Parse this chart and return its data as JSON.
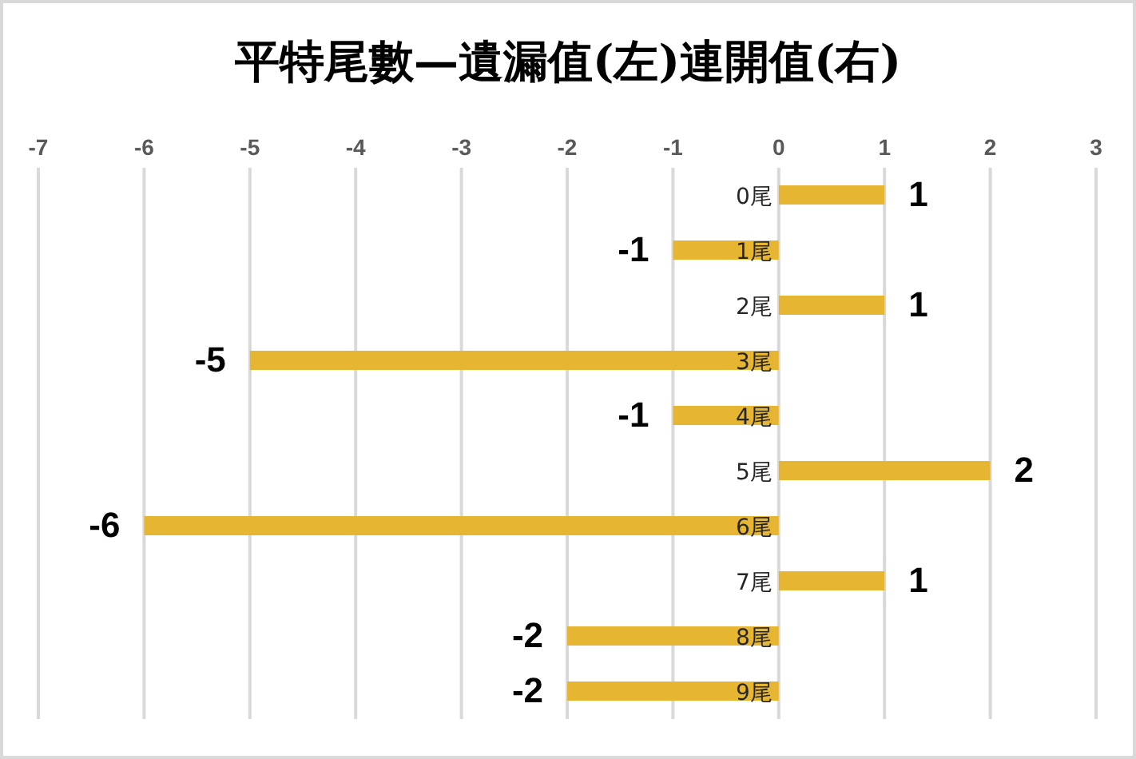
{
  "chart_data": {
    "type": "bar",
    "orientation": "horizontal",
    "title": "平特尾數—遺漏值(左)連開值(右)",
    "categories": [
      "0尾",
      "1尾",
      "2尾",
      "3尾",
      "4尾",
      "5尾",
      "6尾",
      "7尾",
      "8尾",
      "9尾"
    ],
    "values": [
      1,
      -1,
      1,
      -5,
      -1,
      2,
      -6,
      1,
      -2,
      -2
    ],
    "color": "#e6b632",
    "xlim": [
      -7,
      3
    ],
    "xticks": [
      -7,
      -6,
      -5,
      -4,
      -3,
      -2,
      -1,
      0,
      1,
      2,
      3
    ],
    "grid": "x",
    "data_labels": true
  }
}
